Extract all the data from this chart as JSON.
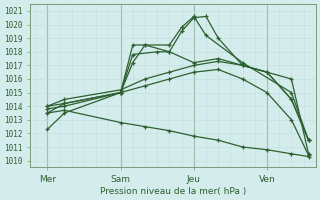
{
  "title": "",
  "xlabel": "Pression niveau de la mer( hPa )",
  "ylabel": "",
  "bg_color": "#d4ecec",
  "grid_minor_color": "#c0dede",
  "grid_major_color": "#a8c8c8",
  "line_color": "#2d6030",
  "vline_color": "#7a9a7a",
  "ylim": [
    1009.5,
    1021.5
  ],
  "yticks": [
    1010,
    1011,
    1012,
    1013,
    1014,
    1015,
    1016,
    1017,
    1018,
    1019,
    1020,
    1021
  ],
  "day_positions": [
    0.5,
    3.5,
    6.5,
    9.5
  ],
  "day_labels": [
    "Mer",
    "Sam",
    "Jeu",
    "Ven"
  ],
  "xlim": [
    -0.2,
    11.5
  ],
  "series": [
    {
      "x": [
        0.5,
        1.2,
        3.5,
        4.0,
        5.0,
        5.5,
        6.0,
        6.5,
        7.0,
        7.5,
        8.5,
        10.5,
        11.2
      ],
      "y": [
        1012.3,
        1013.5,
        1015.0,
        1017.8,
        1018.0,
        1018.0,
        1019.5,
        1020.5,
        1020.6,
        1019.0,
        1017.0,
        1016.0,
        1010.5
      ]
    },
    {
      "x": [
        0.5,
        1.2,
        3.5,
        4.0,
        4.5,
        5.5,
        6.0,
        6.5,
        7.0,
        8.5,
        10.5,
        11.2
      ],
      "y": [
        1013.5,
        1014.2,
        1015.0,
        1017.2,
        1018.5,
        1018.5,
        1019.8,
        1020.6,
        1019.2,
        1017.2,
        1015.0,
        1011.5
      ]
    },
    {
      "x": [
        0.5,
        1.2,
        3.5,
        4.0,
        4.5,
        5.5,
        6.5,
        7.5,
        8.5,
        9.5,
        10.5,
        11.2
      ],
      "y": [
        1014.0,
        1014.2,
        1015.0,
        1018.5,
        1018.5,
        1018.0,
        1017.2,
        1017.5,
        1017.0,
        1016.5,
        1014.5,
        1011.5
      ]
    },
    {
      "x": [
        0.5,
        1.2,
        3.5,
        4.5,
        5.5,
        6.5,
        7.5,
        8.5,
        9.5,
        10.5,
        11.2
      ],
      "y": [
        1014.0,
        1014.5,
        1015.2,
        1016.0,
        1016.5,
        1017.0,
        1017.3,
        1017.0,
        1016.5,
        1014.5,
        1011.5
      ]
    },
    {
      "x": [
        0.5,
        1.2,
        3.5,
        4.5,
        5.5,
        6.5,
        7.5,
        8.5,
        9.5,
        10.5,
        11.2
      ],
      "y": [
        1013.8,
        1014.0,
        1015.0,
        1015.5,
        1016.0,
        1016.5,
        1016.7,
        1016.0,
        1015.0,
        1013.0,
        1010.4
      ]
    },
    {
      "x": [
        0.5,
        1.2,
        3.5,
        4.5,
        5.5,
        6.5,
        7.5,
        8.5,
        9.5,
        10.5,
        11.2
      ],
      "y": [
        1013.5,
        1013.7,
        1012.8,
        1012.5,
        1012.2,
        1011.8,
        1011.5,
        1011.0,
        1010.8,
        1010.5,
        1010.3
      ]
    }
  ]
}
